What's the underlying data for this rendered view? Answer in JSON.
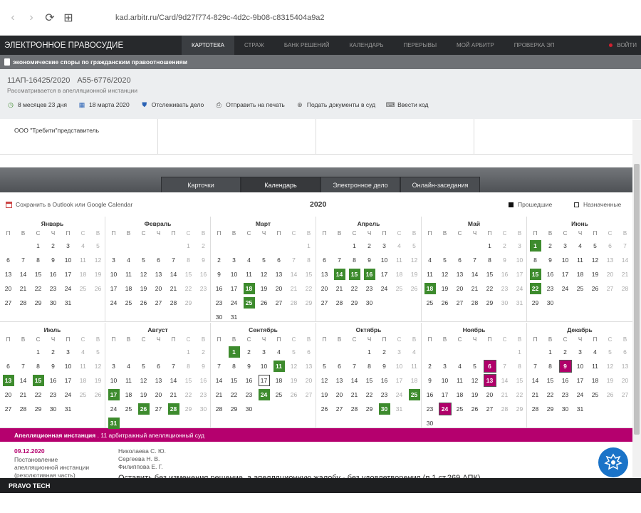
{
  "browser": {
    "back": "‹",
    "forward": "›",
    "reload": "⟳",
    "apps": "⊞",
    "url": "kad.arbitr.ru/Card/9d27f774-829c-4d2c-9b08-c8315404a9a2"
  },
  "topnav": {
    "brand": "ЭЛЕКТРОННОЕ ПРАВОСУДИЕ",
    "items": [
      "КАРТОТЕКА",
      "СТРАЖ",
      "БАНК РЕШЕНИЙ",
      "КАЛЕНДАРЬ",
      "ПЕРЕРЫВЫ",
      "МОЙ АРБИТР",
      "ПРОВЕРКА ЭП"
    ],
    "active_index": 0,
    "logout": "ВОЙТИ"
  },
  "category": "экономические споры по гражданским правоотношениям",
  "case": {
    "number": "11АП-16425/2020",
    "first_instance": "А55-6776/2020",
    "status": "Рассматривается в апелляционной инстанции",
    "actions": [
      {
        "icon": "clock-icon",
        "label": "8 месяцев 23 дня"
      },
      {
        "icon": "calendar-icon",
        "label": "18 марта 2020"
      },
      {
        "icon": "shield-icon",
        "label": "Отслеживать дело"
      },
      {
        "icon": "printer-icon",
        "label": "Отправить на печать"
      },
      {
        "icon": "plus-circle-icon",
        "label": "Подать документы в суд"
      },
      {
        "icon": "keyboard-icon",
        "label": "Ввести код"
      }
    ]
  },
  "parties": {
    "representative": "ООО \"Требити\"представитель"
  },
  "tabs": [
    "Карточки",
    "Календарь",
    "Электронное дело",
    "Онлайн-заседания"
  ],
  "active_tab": 1,
  "calendar": {
    "save_label": "Сохранить в Outlook или Google Calendar",
    "year": "2020",
    "legend_past": "Прошедшие",
    "legend_scheduled": "Назначенные",
    "past_color": "#3d8b2d",
    "scheduled_color": "#b0006a",
    "weekdays": [
      "П",
      "В",
      "С",
      "Ч",
      "П",
      "С",
      "В"
    ],
    "months": [
      {
        "name": "Январь",
        "offset": 2,
        "days": 31,
        "past": [],
        "scheduled": []
      },
      {
        "name": "Февраль",
        "offset": 5,
        "days": 29,
        "past": [],
        "scheduled": []
      },
      {
        "name": "Март",
        "offset": 6,
        "days": 31,
        "past": [
          18,
          25
        ],
        "scheduled": []
      },
      {
        "name": "Апрель",
        "offset": 2,
        "days": 30,
        "past": [
          14,
          15,
          16
        ],
        "scheduled": []
      },
      {
        "name": "Май",
        "offset": 4,
        "days": 31,
        "past": [
          18
        ],
        "scheduled": []
      },
      {
        "name": "Июнь",
        "offset": 0,
        "days": 30,
        "past": [
          1,
          15,
          22
        ],
        "scheduled": []
      },
      {
        "name": "Июль",
        "offset": 2,
        "days": 31,
        "past": [
          13,
          15
        ],
        "scheduled": []
      },
      {
        "name": "Август",
        "offset": 5,
        "days": 31,
        "past": [
          17,
          26,
          28,
          31
        ],
        "scheduled": []
      },
      {
        "name": "Сентябрь",
        "offset": 1,
        "days": 30,
        "past": [
          1,
          11,
          24
        ],
        "scheduled": [],
        "today": 17
      },
      {
        "name": "Октябрь",
        "offset": 3,
        "days": 31,
        "past": [
          25,
          30
        ],
        "scheduled": []
      },
      {
        "name": "Ноябрь",
        "offset": 6,
        "days": 30,
        "past": [],
        "scheduled": [
          6,
          13,
          24
        ]
      },
      {
        "name": "Декабрь",
        "offset": 1,
        "days": 31,
        "past": [],
        "scheduled": [
          9
        ]
      }
    ]
  },
  "instance": {
    "title": "Апелляционная инстанция",
    "court": ". 11 арбитражный апелляционный суд"
  },
  "decision": {
    "date": "09.12.2020",
    "type_lines": [
      "Постановление",
      "апелляционной инстанции",
      "(резолютивная часть)"
    ],
    "judges": [
      "Николаева С. Ю.",
      "Сергеева Н. В.",
      "Филиппова Е. Г."
    ],
    "result": "Оставить без изменения решение, а апелляционную жалобу - без удовлетворения (п.1 ст.269 АПК)",
    "badge_icon": "eagle-emblem-icon"
  },
  "footer": "PRAVO TECH"
}
